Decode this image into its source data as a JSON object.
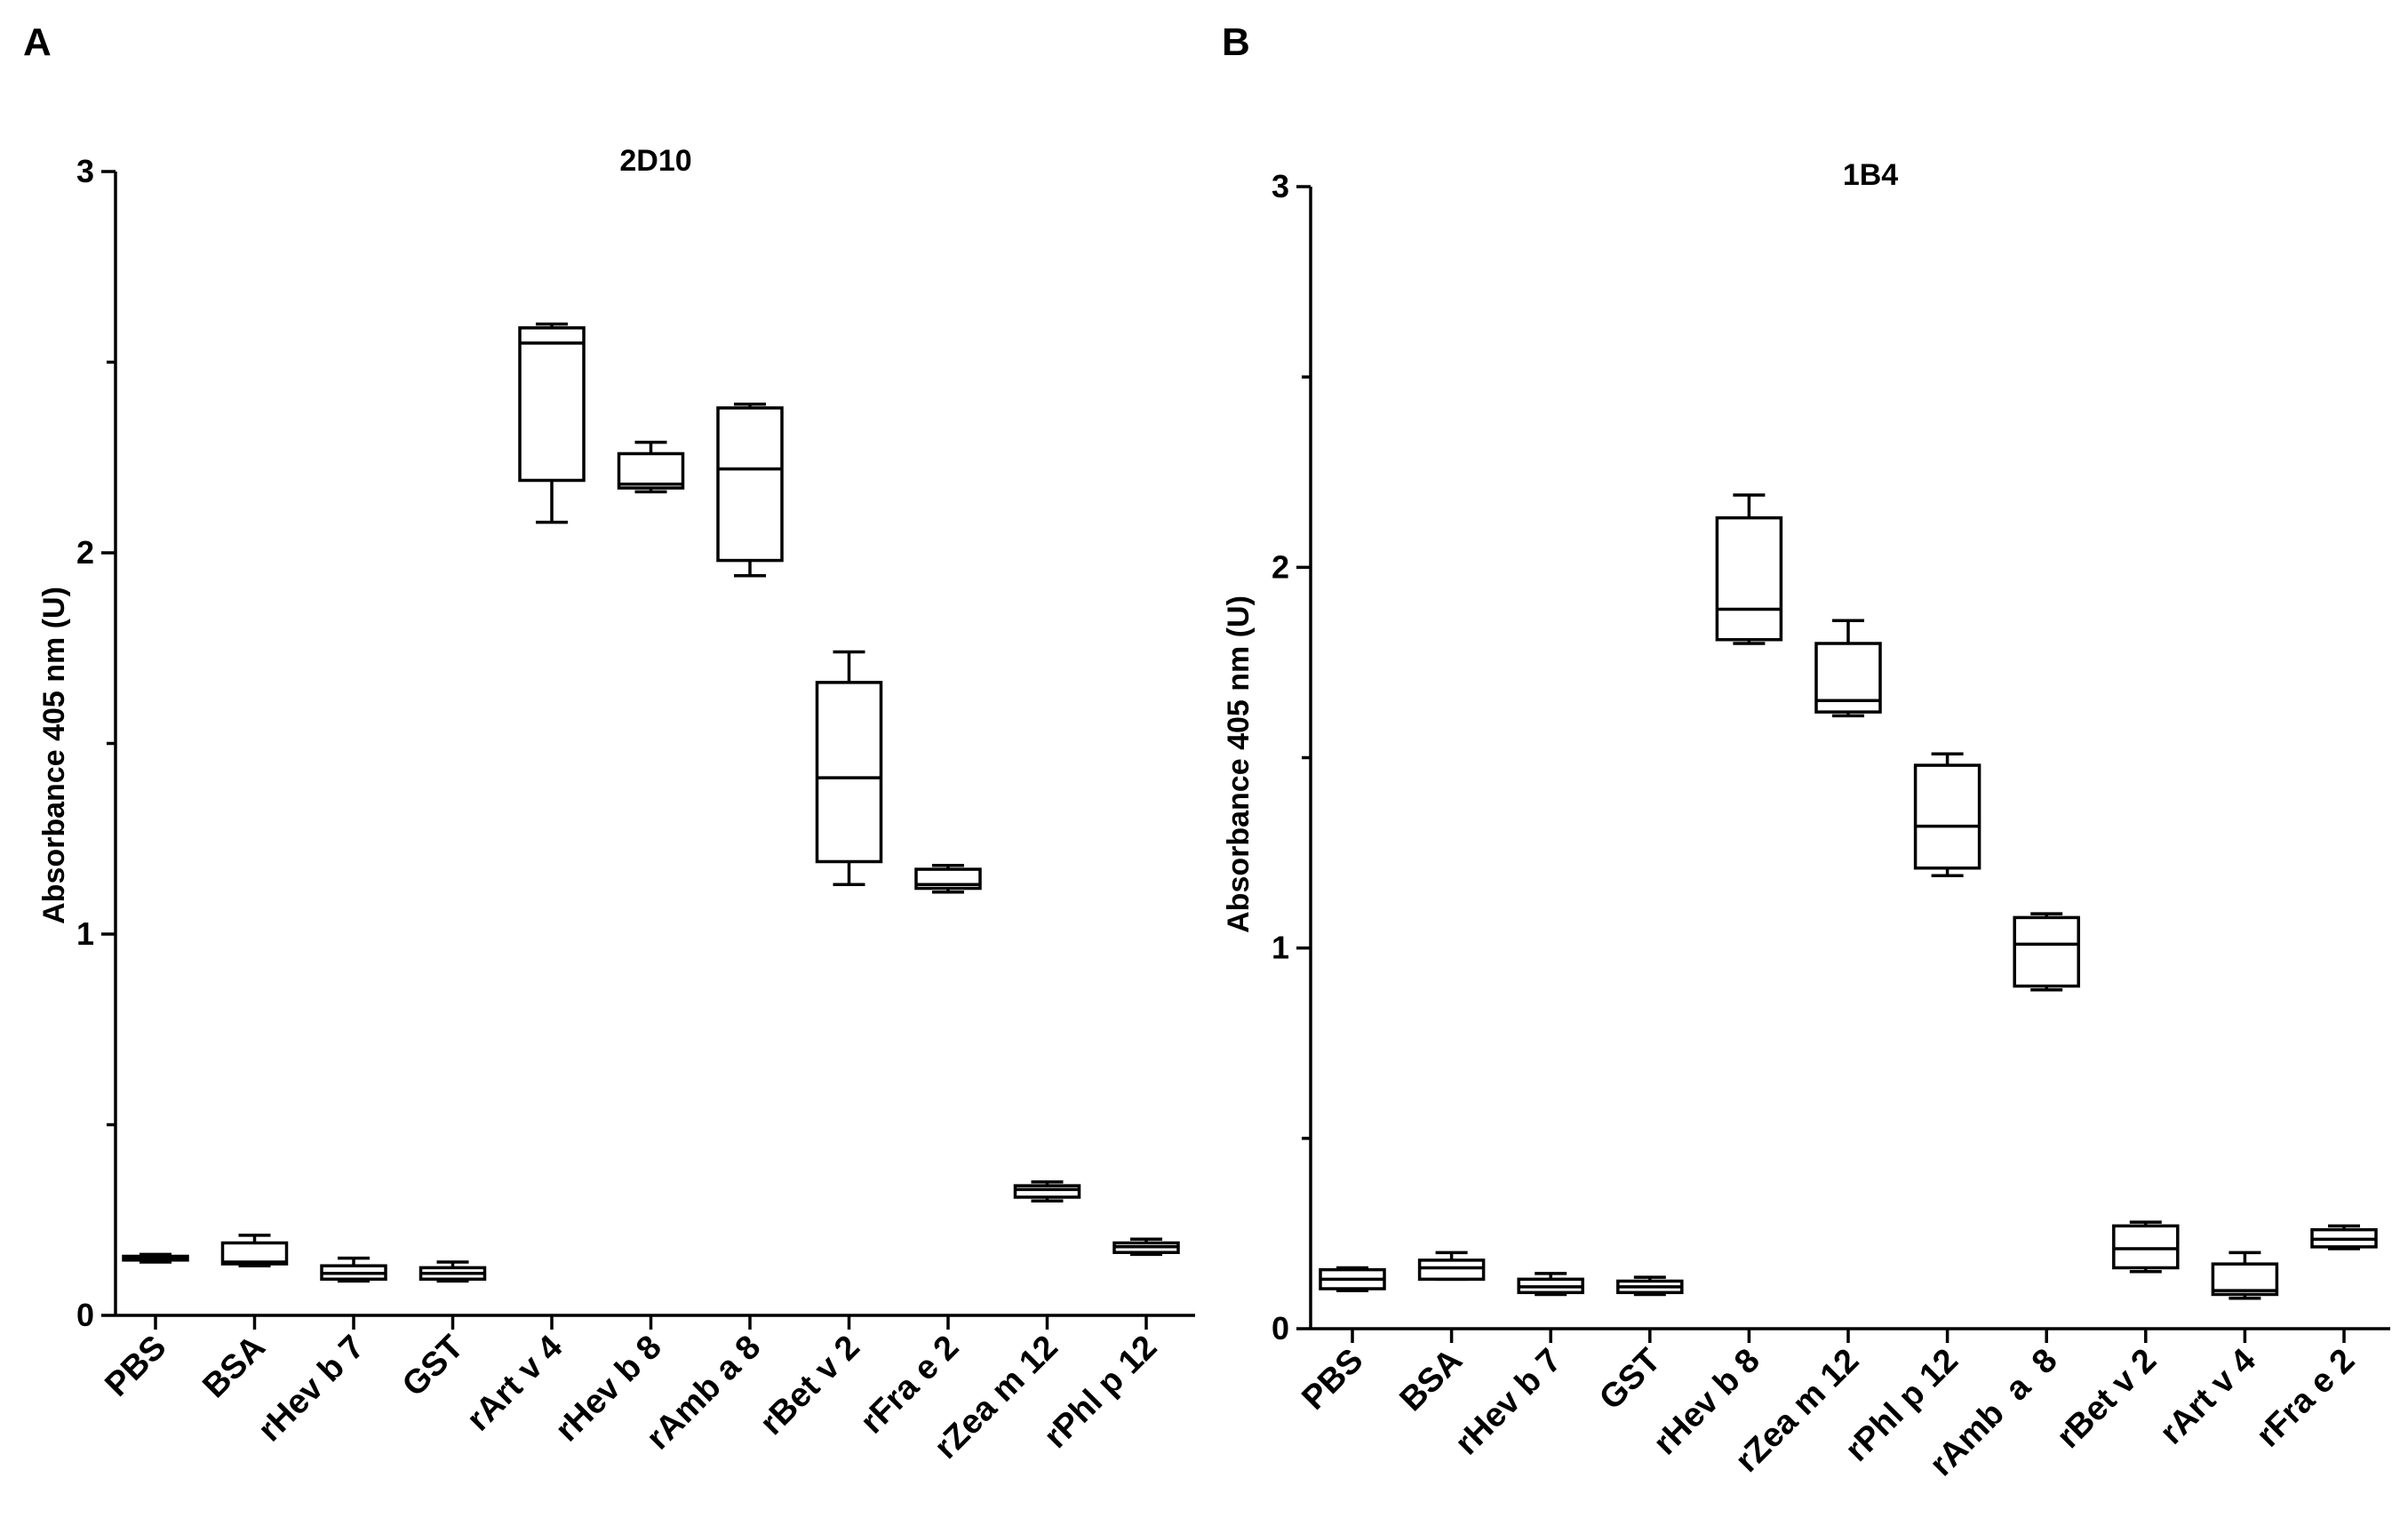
{
  "chart_data": [
    {
      "panel": "A",
      "type": "box",
      "title": "2D10",
      "ylabel": "Absorbance 405 nm (U)",
      "xlabel": "",
      "ylim": [
        0,
        3
      ],
      "yticks": [
        0,
        1,
        2,
        3
      ],
      "categories": [
        "PBS",
        "BSA",
        "rHev b 7",
        "GST",
        "rArt v 4",
        "rHev b 8",
        "rAmb a 8",
        "rBet v 2",
        "rFra e 2",
        "rZea m 12",
        "rPhl p 12"
      ],
      "boxes": [
        {
          "min": 0.14,
          "q1": 0.145,
          "median": 0.15,
          "q3": 0.155,
          "max": 0.16
        },
        {
          "min": 0.13,
          "q1": 0.135,
          "median": 0.14,
          "q3": 0.19,
          "max": 0.21
        },
        {
          "min": 0.09,
          "q1": 0.095,
          "median": 0.11,
          "q3": 0.13,
          "max": 0.15
        },
        {
          "min": 0.09,
          "q1": 0.095,
          "median": 0.11,
          "q3": 0.125,
          "max": 0.14
        },
        {
          "min": 2.08,
          "q1": 2.19,
          "median": 2.55,
          "q3": 2.59,
          "max": 2.6
        },
        {
          "min": 2.16,
          "q1": 2.17,
          "median": 2.18,
          "q3": 2.26,
          "max": 2.29
        },
        {
          "min": 1.94,
          "q1": 1.98,
          "median": 2.22,
          "q3": 2.38,
          "max": 2.39
        },
        {
          "min": 1.13,
          "q1": 1.19,
          "median": 1.41,
          "q3": 1.66,
          "max": 1.74
        },
        {
          "min": 1.11,
          "q1": 1.12,
          "median": 1.13,
          "q3": 1.17,
          "max": 1.18
        },
        {
          "min": 0.3,
          "q1": 0.31,
          "median": 0.33,
          "q3": 0.34,
          "max": 0.35
        },
        {
          "min": 0.16,
          "q1": 0.165,
          "median": 0.18,
          "q3": 0.19,
          "max": 0.2
        }
      ]
    },
    {
      "panel": "B",
      "type": "box",
      "title": "1B4",
      "ylabel": "Absorbance 405 nm (U)",
      "xlabel": "",
      "ylim": [
        0,
        3
      ],
      "yticks": [
        0,
        1,
        2,
        3
      ],
      "categories": [
        "PBS",
        "BSA",
        "rHev b 7",
        "GST",
        "rHev b 8",
        "rZea m 12",
        "rPhl p 12",
        "rAmb  a  8",
        "rBet v 2",
        "rArt v 4",
        "rFra e 2"
      ],
      "boxes": [
        {
          "min": 0.1,
          "q1": 0.105,
          "median": 0.13,
          "q3": 0.155,
          "max": 0.16
        },
        {
          "min": 0.13,
          "q1": 0.13,
          "median": 0.16,
          "q3": 0.18,
          "max": 0.2
        },
        {
          "min": 0.09,
          "q1": 0.095,
          "median": 0.11,
          "q3": 0.13,
          "max": 0.145
        },
        {
          "min": 0.09,
          "q1": 0.095,
          "median": 0.11,
          "q3": 0.125,
          "max": 0.135
        },
        {
          "min": 1.8,
          "q1": 1.81,
          "median": 1.89,
          "q3": 2.13,
          "max": 2.19
        },
        {
          "min": 1.61,
          "q1": 1.62,
          "median": 1.65,
          "q3": 1.8,
          "max": 1.86
        },
        {
          "min": 1.19,
          "q1": 1.21,
          "median": 1.32,
          "q3": 1.48,
          "max": 1.51
        },
        {
          "min": 0.89,
          "q1": 0.9,
          "median": 1.01,
          "q3": 1.08,
          "max": 1.09
        },
        {
          "min": 0.15,
          "q1": 0.16,
          "median": 0.21,
          "q3": 0.27,
          "max": 0.28
        },
        {
          "min": 0.08,
          "q1": 0.09,
          "median": 0.1,
          "q3": 0.17,
          "max": 0.2
        },
        {
          "min": 0.21,
          "q1": 0.215,
          "median": 0.235,
          "q3": 0.26,
          "max": 0.27
        }
      ]
    }
  ]
}
